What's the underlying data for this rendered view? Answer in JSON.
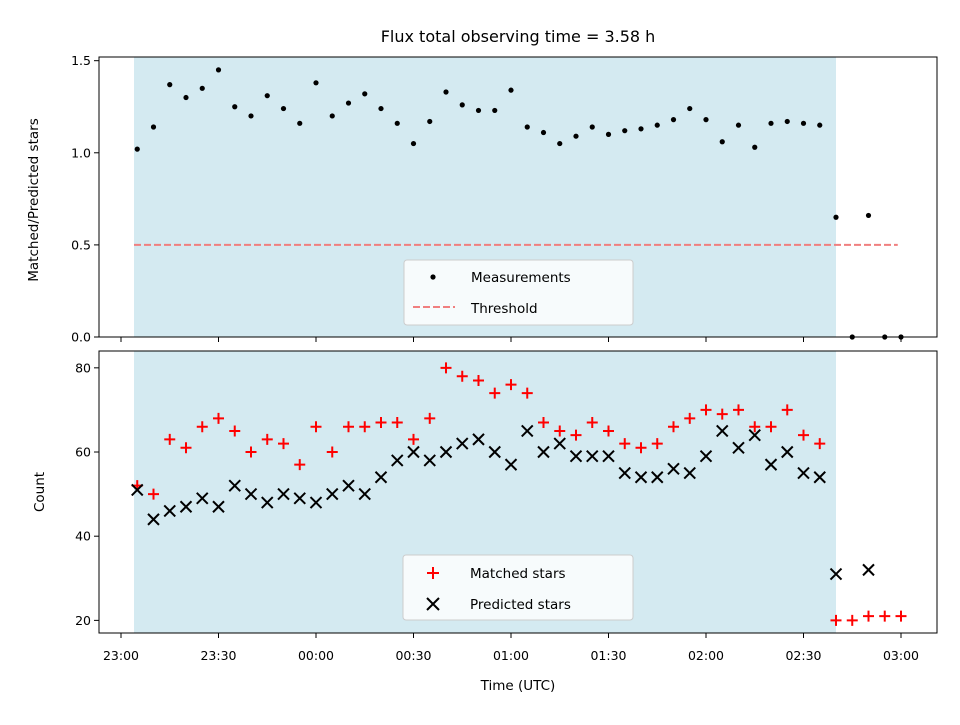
{
  "chart_data": [
    {
      "type": "scatter",
      "title": "Flux total observing time = 3.58 h",
      "ylabel": "Matched/Predicted stars",
      "xlabel": "",
      "ylim": [
        0,
        1.52
      ],
      "xlim": [
        "23:00",
        "03:00"
      ],
      "yticks": [
        "0.0",
        "0.5",
        "1.0",
        "1.5"
      ],
      "grid": false,
      "shaded_region": {
        "x_start": "23:04",
        "x_end": "02:40",
        "color": "#d4eaf1"
      },
      "threshold": {
        "name": "Threshold",
        "y": 0.5,
        "x_start": "23:04",
        "x_end": "02:59",
        "color": "#f07f7f"
      },
      "legend": {
        "placement": "bottom-center",
        "entries": [
          "Measurements",
          "Threshold"
        ]
      },
      "series": [
        {
          "name": "Measurements",
          "color": "#000000",
          "marker": "dot",
          "x": [
            "23:05",
            "23:10",
            "23:15",
            "23:20",
            "23:25",
            "23:30",
            "23:35",
            "23:40",
            "23:45",
            "23:50",
            "23:55",
            "00:00",
            "00:05",
            "00:10",
            "00:15",
            "00:20",
            "00:25",
            "00:30",
            "00:35",
            "00:40",
            "00:45",
            "00:50",
            "00:55",
            "01:00",
            "01:05",
            "01:10",
            "01:15",
            "01:20",
            "01:25",
            "01:30",
            "01:35",
            "01:40",
            "01:45",
            "01:50",
            "01:55",
            "02:00",
            "02:05",
            "02:10",
            "02:15",
            "02:20",
            "02:25",
            "02:30",
            "02:35",
            "02:40",
            "02:45",
            "02:50",
            "02:55",
            "03:00"
          ],
          "y": [
            1.02,
            1.14,
            1.37,
            1.3,
            1.35,
            1.45,
            1.25,
            1.2,
            1.31,
            1.24,
            1.16,
            1.38,
            1.2,
            1.27,
            1.32,
            1.24,
            1.16,
            1.05,
            1.17,
            1.33,
            1.26,
            1.23,
            1.23,
            1.34,
            1.14,
            1.11,
            1.05,
            1.09,
            1.14,
            1.1,
            1.12,
            1.13,
            1.15,
            1.18,
            1.24,
            1.18,
            1.06,
            1.15,
            1.03,
            1.16,
            1.17,
            1.16,
            1.15,
            0.65,
            0.0,
            0.66,
            0.0,
            0.0
          ]
        }
      ]
    },
    {
      "type": "scatter",
      "title": "",
      "ylabel": "Count",
      "xlabel": "Time (UTC)",
      "ylim": [
        17,
        84
      ],
      "xlim": [
        "23:00",
        "03:00"
      ],
      "yticks": [
        "20",
        "40",
        "60",
        "80"
      ],
      "xticks": [
        "23:00",
        "23:30",
        "00:00",
        "00:30",
        "01:00",
        "01:30",
        "02:00",
        "02:30",
        "03:00"
      ],
      "grid": false,
      "shaded_region": {
        "x_start": "23:04",
        "x_end": "02:40",
        "color": "#d4eaf1"
      },
      "legend": {
        "placement": "bottom-center",
        "entries": [
          "Matched stars",
          "Predicted stars"
        ]
      },
      "x": [
        "23:05",
        "23:10",
        "23:15",
        "23:20",
        "23:25",
        "23:30",
        "23:35",
        "23:40",
        "23:45",
        "23:50",
        "23:55",
        "00:00",
        "00:05",
        "00:10",
        "00:15",
        "00:20",
        "00:25",
        "00:30",
        "00:35",
        "00:40",
        "00:45",
        "00:50",
        "00:55",
        "01:00",
        "01:05",
        "01:10",
        "01:15",
        "01:20",
        "01:25",
        "01:30",
        "01:35",
        "01:40",
        "01:45",
        "01:50",
        "01:55",
        "02:00",
        "02:05",
        "02:10",
        "02:15",
        "02:20",
        "02:25",
        "02:30",
        "02:35",
        "02:40",
        "02:45",
        "02:50",
        "02:55",
        "03:00"
      ],
      "series": [
        {
          "name": "Matched stars",
          "color": "#ff0000",
          "marker": "plus",
          "values": [
            52,
            50,
            63,
            61,
            66,
            68,
            65,
            60,
            63,
            62,
            57,
            66,
            60,
            66,
            66,
            67,
            67,
            63,
            68,
            80,
            78,
            77,
            74,
            76,
            74,
            67,
            65,
            64,
            67,
            65,
            62,
            61,
            62,
            66,
            68,
            70,
            69,
            70,
            66,
            66,
            70,
            64,
            62,
            20,
            20,
            21,
            21,
            21
          ]
        },
        {
          "name": "Predicted stars",
          "color": "#000000",
          "marker": "x",
          "values": [
            51,
            44,
            46,
            47,
            49,
            47,
            52,
            50,
            48,
            50,
            49,
            48,
            50,
            52,
            50,
            54,
            58,
            60,
            58,
            60,
            62,
            63,
            60,
            57,
            65,
            60,
            62,
            59,
            59,
            59,
            55,
            54,
            54,
            56,
            55,
            59,
            65,
            61,
            64,
            57,
            60,
            55,
            54,
            31,
            null,
            32,
            null,
            null
          ]
        }
      ]
    }
  ]
}
